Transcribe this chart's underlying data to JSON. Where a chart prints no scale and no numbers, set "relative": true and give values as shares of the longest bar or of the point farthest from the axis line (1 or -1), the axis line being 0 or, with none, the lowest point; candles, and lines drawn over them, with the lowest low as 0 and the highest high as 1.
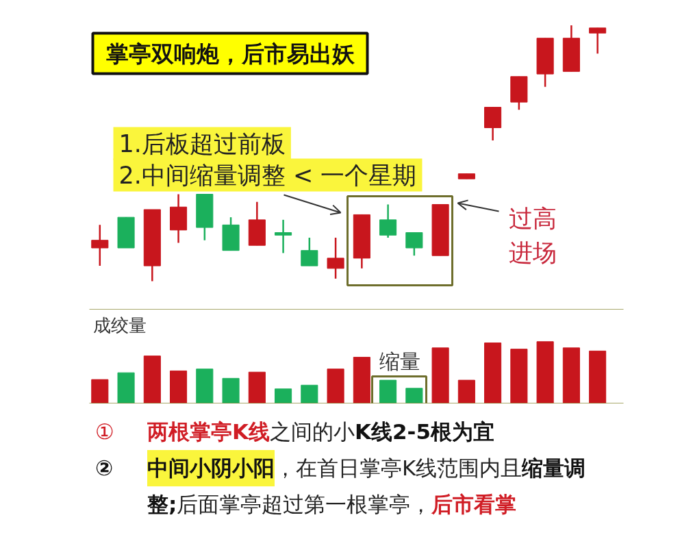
{
  "chart_data": [
    {
      "type": "candlestick",
      "title": "掌亭双响炮，后市易出妖",
      "relative": true,
      "categories": [
        null,
        null,
        null,
        null,
        null,
        null,
        null,
        null,
        null,
        null,
        null,
        null,
        null,
        null,
        null,
        null,
        null,
        null,
        null,
        null
      ],
      "ohlc": [
        [
          0.13,
          0.22,
          0.06,
          0.16
        ],
        [
          0.25,
          0.25,
          0.13,
          0.13
        ],
        [
          0.06,
          0.28,
          0.0,
          0.28
        ],
        [
          0.2,
          0.34,
          0.15,
          0.29
        ],
        [
          0.34,
          0.34,
          0.16,
          0.21
        ],
        [
          0.22,
          0.25,
          0.12,
          0.12
        ],
        [
          0.14,
          0.31,
          0.14,
          0.24
        ],
        [
          0.19,
          0.24,
          0.11,
          0.18
        ],
        [
          0.12,
          0.17,
          0.06,
          0.06
        ],
        [
          0.05,
          0.17,
          0.01,
          0.09
        ],
        [
          0.09,
          0.26,
          0.05,
          0.26
        ],
        [
          0.24,
          0.3,
          0.17,
          0.18
        ],
        [
          0.19,
          0.19,
          0.1,
          0.13
        ],
        [
          0.1,
          0.3,
          0.1,
          0.3
        ],
        [
          0.4,
          0.42,
          0.4,
          0.42
        ],
        [
          0.6,
          0.68,
          0.55,
          0.68
        ],
        [
          0.7,
          0.8,
          0.67,
          0.8
        ],
        [
          0.81,
          0.95,
          0.76,
          0.95
        ],
        [
          0.82,
          1.0,
          0.82,
          0.95
        ],
        [
          0.97,
          0.99,
          0.89,
          0.99
        ]
      ],
      "colors": [
        "#c8161d",
        "#1bb05c",
        "#c8161d",
        "#c8161d",
        "#1bb05c",
        "#1bb05c",
        "#c8161d",
        "#1bb05c",
        "#1bb05c",
        "#c8161d",
        "#c8161d",
        "#1bb05c",
        "#1bb05c",
        "#c8161d",
        "#c8161d",
        "#c8161d",
        "#c8161d",
        "#c8161d",
        "#c8161d",
        "#c8161d"
      ],
      "annotations": [
        "1.后板超过前板",
        "2.中间缩量调整 < 一个星期",
        "过高进场"
      ]
    },
    {
      "type": "bar",
      "title": "成绞量",
      "relative": true,
      "categories": [
        null,
        null,
        null,
        null,
        null,
        null,
        null,
        null,
        null,
        null,
        null,
        null,
        null,
        null,
        null,
        null,
        null,
        null,
        null,
        null
      ],
      "values": [
        0.39,
        0.5,
        0.77,
        0.53,
        0.56,
        0.41,
        0.51,
        0.24,
        0.3,
        0.56,
        0.75,
        0.38,
        0.25,
        0.9,
        0.38,
        0.98,
        0.88,
        1.0,
        0.9,
        0.85
      ],
      "colors": [
        "#c8161d",
        "#1bb05c",
        "#c8161d",
        "#c8161d",
        "#1bb05c",
        "#1bb05c",
        "#c8161d",
        "#1bb05c",
        "#1bb05c",
        "#c8161d",
        "#c8161d",
        "#1bb05c",
        "#1bb05c",
        "#c8161d",
        "#c8161d",
        "#c8161d",
        "#c8161d",
        "#c8161d",
        "#c8161d",
        "#c8161d"
      ],
      "annotations": [
        "缩量",
        "①",
        "两根掌亭K线",
        "之间的小",
        "K线2-5根为宜",
        "②",
        "中间小阴小阳",
        "，在首日掌亭K线范围内且",
        "缩量调",
        "整;",
        "后面掌亭超过第一根掌亭，",
        "后市看掌"
      ]
    }
  ]
}
